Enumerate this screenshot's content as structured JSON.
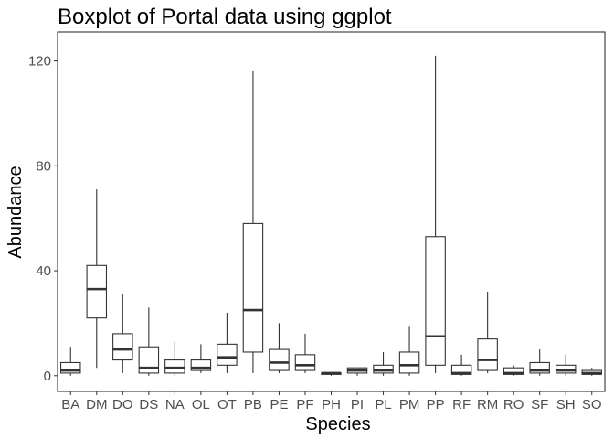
{
  "chart_data": {
    "type": "boxplot",
    "title": "Boxplot of Portal data using ggplot",
    "xlabel": "Species",
    "ylabel": "Abundance",
    "ylim": [
      -6,
      131
    ],
    "yticks": [
      0,
      40,
      80,
      120
    ],
    "grid": false,
    "categories": [
      "BA",
      "DM",
      "DO",
      "DS",
      "NA",
      "OL",
      "OT",
      "PB",
      "PE",
      "PF",
      "PH",
      "PI",
      "PL",
      "PM",
      "PP",
      "RF",
      "RM",
      "RO",
      "SF",
      "SH",
      "SO"
    ],
    "boxes": [
      {
        "min": 0,
        "q1": 1,
        "median": 2,
        "q3": 5,
        "max": 11
      },
      {
        "min": 3,
        "q1": 22,
        "median": 33,
        "q3": 42,
        "max": 71
      },
      {
        "min": 1,
        "q1": 6,
        "median": 10,
        "q3": 16,
        "max": 31
      },
      {
        "min": 0,
        "q1": 1,
        "median": 3,
        "q3": 11,
        "max": 26
      },
      {
        "min": 0,
        "q1": 1,
        "median": 3,
        "q3": 6,
        "max": 13
      },
      {
        "min": 1,
        "q1": 2,
        "median": 3,
        "q3": 6,
        "max": 12
      },
      {
        "min": 1,
        "q1": 4,
        "median": 7,
        "q3": 12,
        "max": 24
      },
      {
        "min": 1,
        "q1": 9,
        "median": 25,
        "q3": 58,
        "max": 116
      },
      {
        "min": 1,
        "q1": 2,
        "median": 5,
        "q3": 10,
        "max": 20
      },
      {
        "min": 1,
        "q1": 2,
        "median": 4,
        "q3": 8,
        "max": 16
      },
      {
        "min": 0,
        "q1": 0.5,
        "median": 1,
        "q3": 1,
        "max": 1
      },
      {
        "min": 0,
        "q1": 1,
        "median": 2,
        "q3": 3,
        "max": 3
      },
      {
        "min": 0,
        "q1": 1,
        "median": 2,
        "q3": 4,
        "max": 9
      },
      {
        "min": 0,
        "q1": 1,
        "median": 4,
        "q3": 9,
        "max": 19
      },
      {
        "min": 1,
        "q1": 4,
        "median": 15,
        "q3": 53,
        "max": 122
      },
      {
        "min": 0,
        "q1": 0.5,
        "median": 1,
        "q3": 4,
        "max": 8
      },
      {
        "min": 1,
        "q1": 2,
        "median": 6,
        "q3": 14,
        "max": 32
      },
      {
        "min": 0,
        "q1": 0.5,
        "median": 1,
        "q3": 3,
        "max": 4
      },
      {
        "min": 0,
        "q1": 1,
        "median": 2,
        "q3": 5,
        "max": 10
      },
      {
        "min": 0,
        "q1": 1,
        "median": 2,
        "q3": 4,
        "max": 8
      },
      {
        "min": 0,
        "q1": 0.5,
        "median": 1,
        "q3": 2,
        "max": 3
      }
    ],
    "colors": {
      "box_line": "#333333",
      "panel_border": "#333333",
      "tick": "#333333",
      "background": "#ffffff"
    }
  }
}
